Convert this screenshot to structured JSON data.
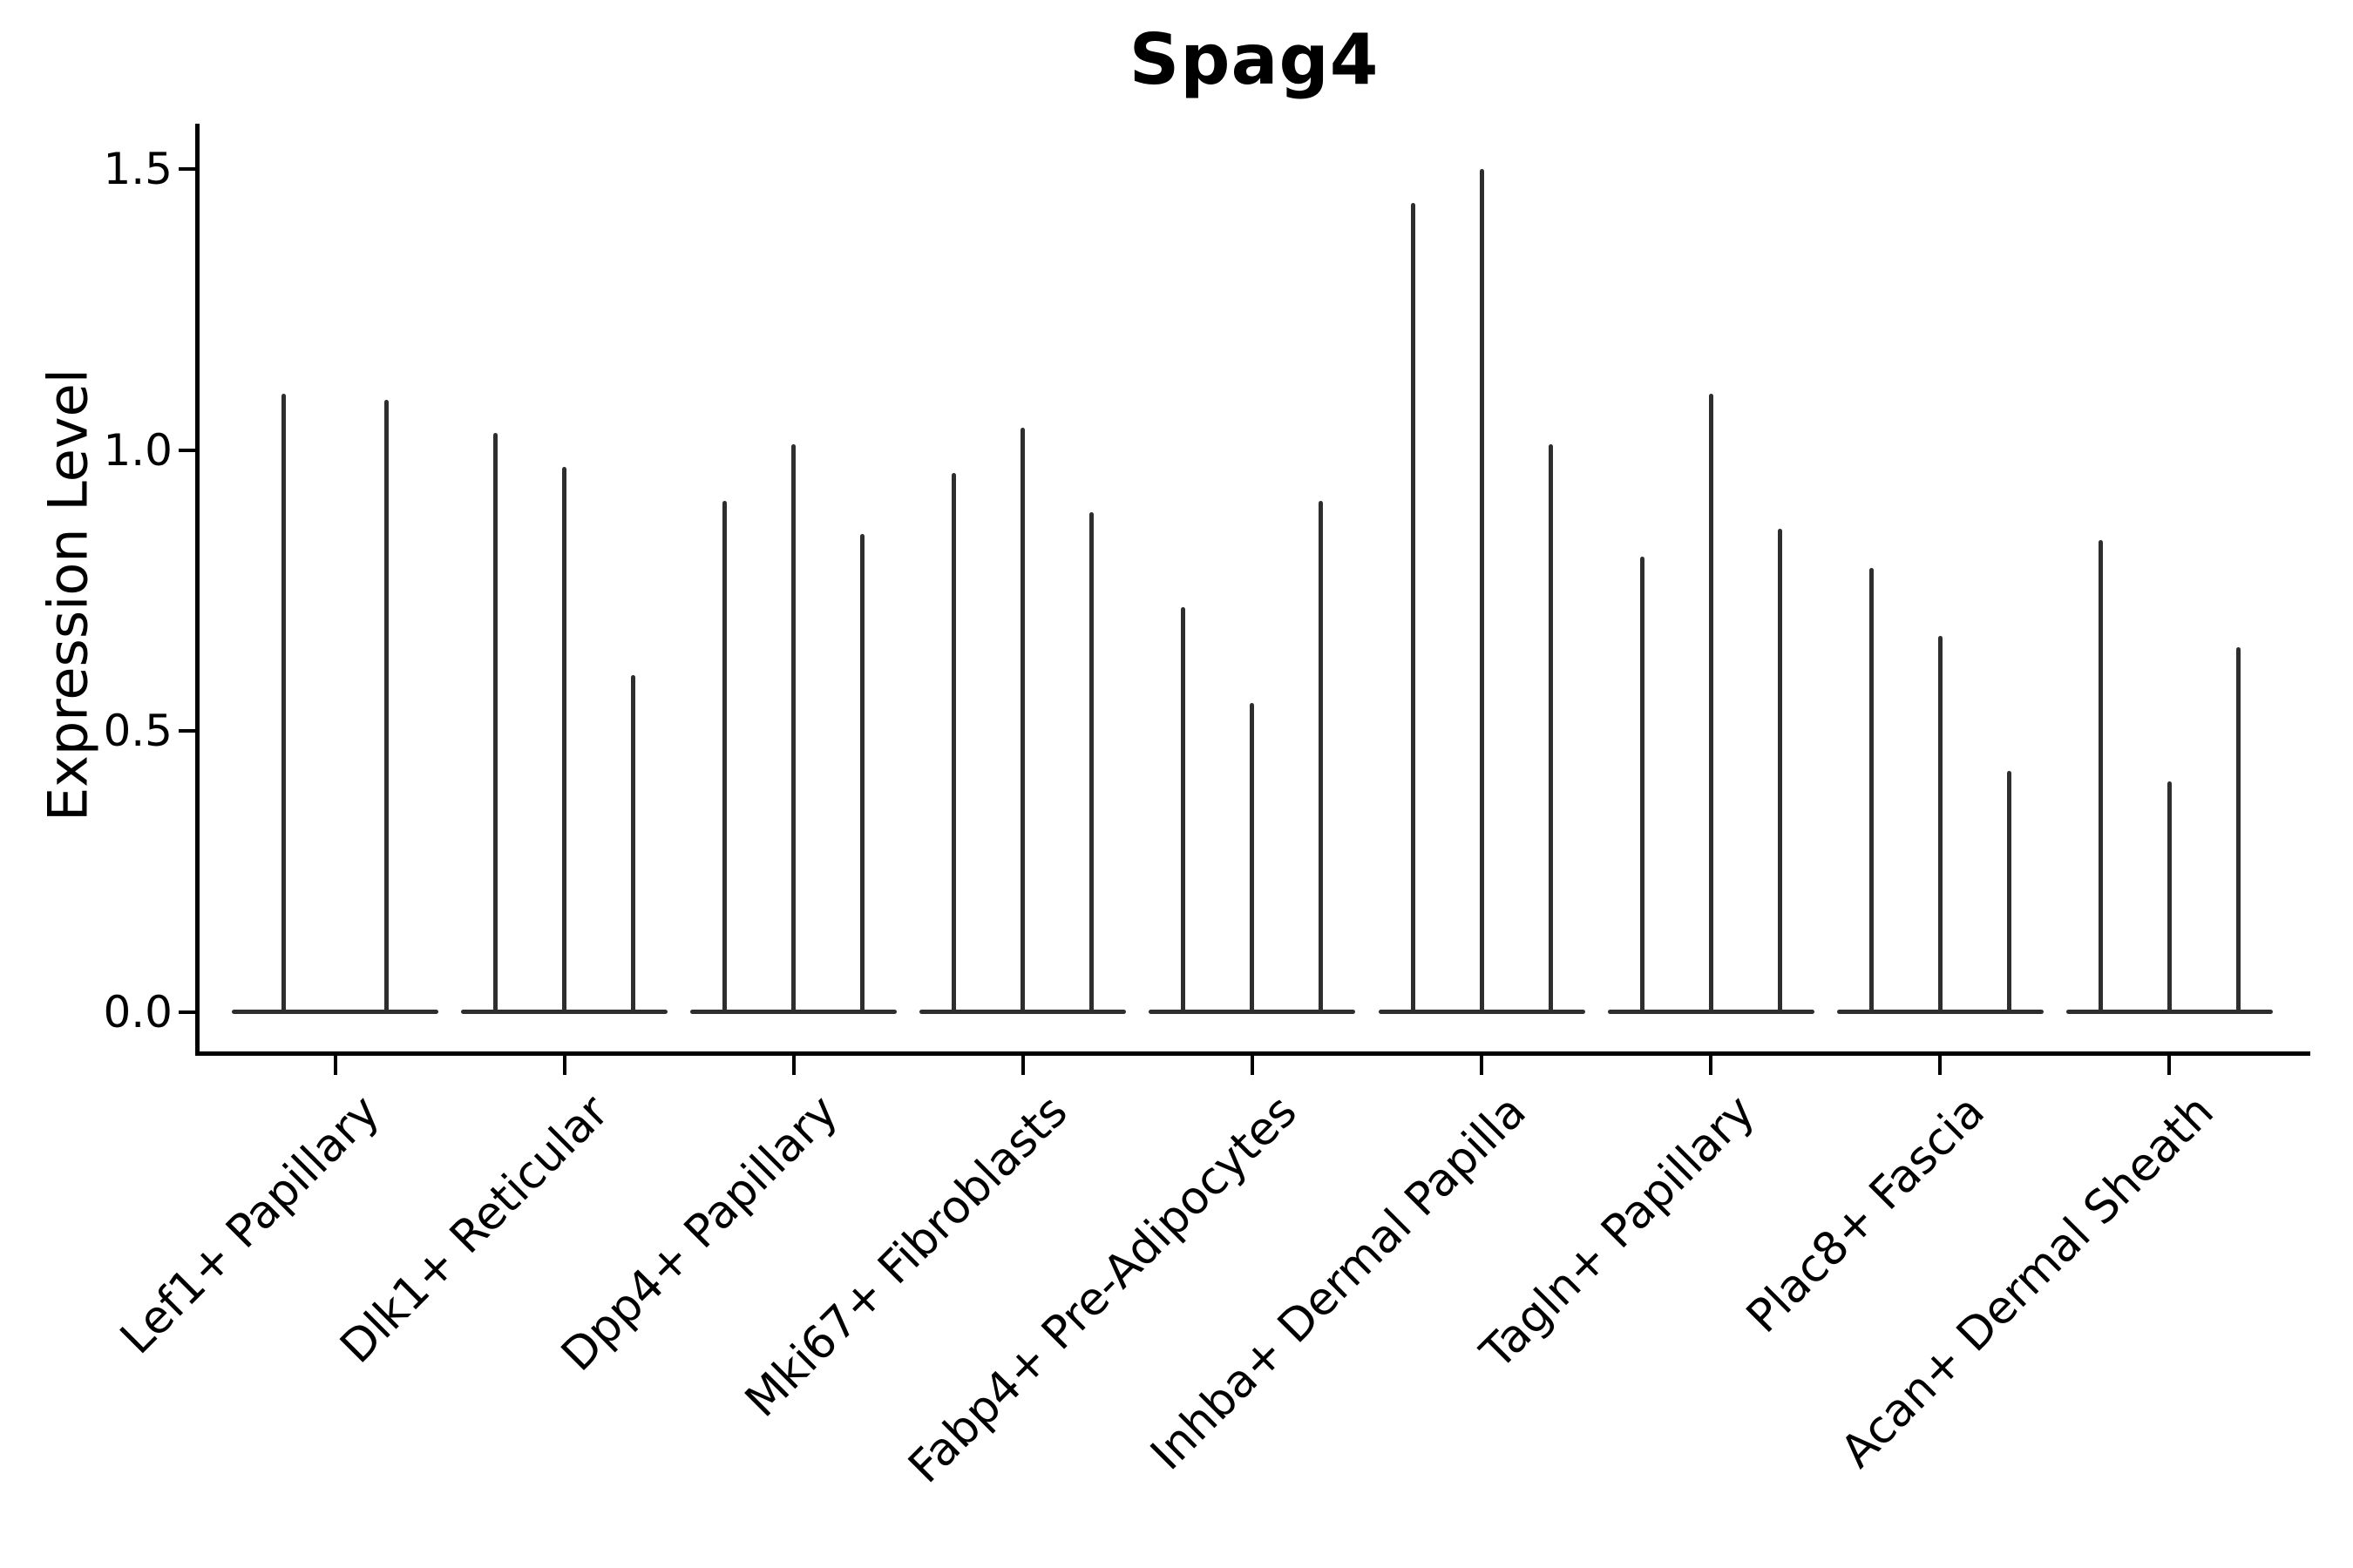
{
  "chart_data": {
    "type": "violin",
    "title": "Spag4",
    "xlabel": "",
    "ylabel": "Expression Level",
    "ylim": [
      0,
      1.58
    ],
    "yticks": [
      0.0,
      0.5,
      1.0,
      1.5
    ],
    "ytick_labels": [
      "0.0",
      "0.5",
      "1.0",
      "1.5"
    ],
    "grid": false,
    "legend": "none",
    "violin_color": "#2e2e2e",
    "spine_color": "#000000",
    "categories": [
      "Lef1+ Papillary",
      "Dlk1+ Reticular",
      "Dpp4+ Papillary",
      "Mki67+ Fibroblasts",
      "Fabp4+ Pre-Adipocytes",
      "Inhba+ Dermal Papilla",
      "Tagln+ Papillary",
      "Plac8+ Fascia",
      "Acan+ Dermal Sheath"
    ],
    "series": [
      {
        "name": "Lef1+ Papillary",
        "violin_max_values": [
          1.1,
          1.09
        ]
      },
      {
        "name": "Dlk1+ Reticular",
        "violin_max_values": [
          1.03,
          0.97,
          0.6
        ]
      },
      {
        "name": "Dpp4+ Papillary",
        "violin_max_values": [
          0.91,
          1.01,
          0.85
        ]
      },
      {
        "name": "Mki67+ Fibroblasts",
        "violin_max_values": [
          0.96,
          1.04,
          0.89
        ]
      },
      {
        "name": "Fabp4+ Pre-Adipocytes",
        "violin_max_values": [
          0.72,
          0.55,
          0.91
        ]
      },
      {
        "name": "Inhba+ Dermal Papilla",
        "violin_max_values": [
          1.44,
          1.5,
          1.01
        ]
      },
      {
        "name": "Tagln+ Papillary",
        "violin_max_values": [
          0.81,
          1.1,
          0.86
        ]
      },
      {
        "name": "Plac8+ Fascia",
        "violin_max_values": [
          0.79,
          0.67,
          0.43
        ]
      },
      {
        "name": "Acan+ Dermal Sheath",
        "violin_max_values": [
          0.84,
          0.41,
          0.65
        ]
      }
    ]
  }
}
